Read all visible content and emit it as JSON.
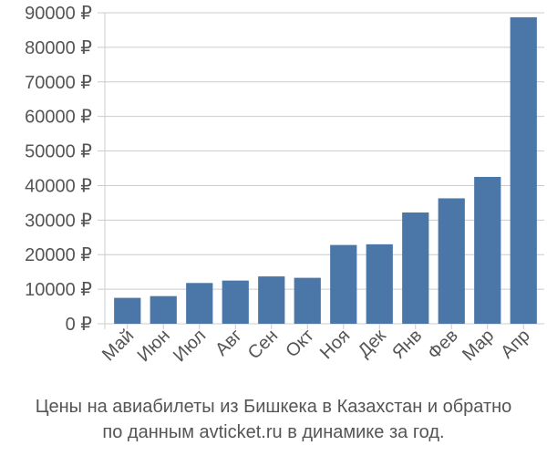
{
  "chart_data": {
    "type": "bar",
    "categories": [
      "Май",
      "Июн",
      "Июл",
      "Авг",
      "Сен",
      "Окт",
      "Ноя",
      "Дек",
      "Янв",
      "Фев",
      "Мар",
      "Апр"
    ],
    "values": [
      7500,
      8000,
      11800,
      12500,
      13700,
      13300,
      22800,
      23000,
      32200,
      36300,
      42500,
      88700
    ],
    "ylim": [
      0,
      90000
    ],
    "yticks": [
      0,
      10000,
      20000,
      30000,
      40000,
      50000,
      60000,
      70000,
      80000,
      90000
    ],
    "ytick_labels": [
      "0 ₽",
      "10000 ₽",
      "20000 ₽",
      "30000 ₽",
      "40000 ₽",
      "50000 ₽",
      "60000 ₽",
      "70000 ₽",
      "80000 ₽",
      "90000 ₽"
    ],
    "grid": true,
    "bar_color": "#4a76a8",
    "grid_color": "#cccccc"
  },
  "caption": {
    "line1": "Цены на авиабилеты из Бишкека в Казахстан и обратно",
    "line2": "по данным avticket.ru в динамике за год."
  }
}
